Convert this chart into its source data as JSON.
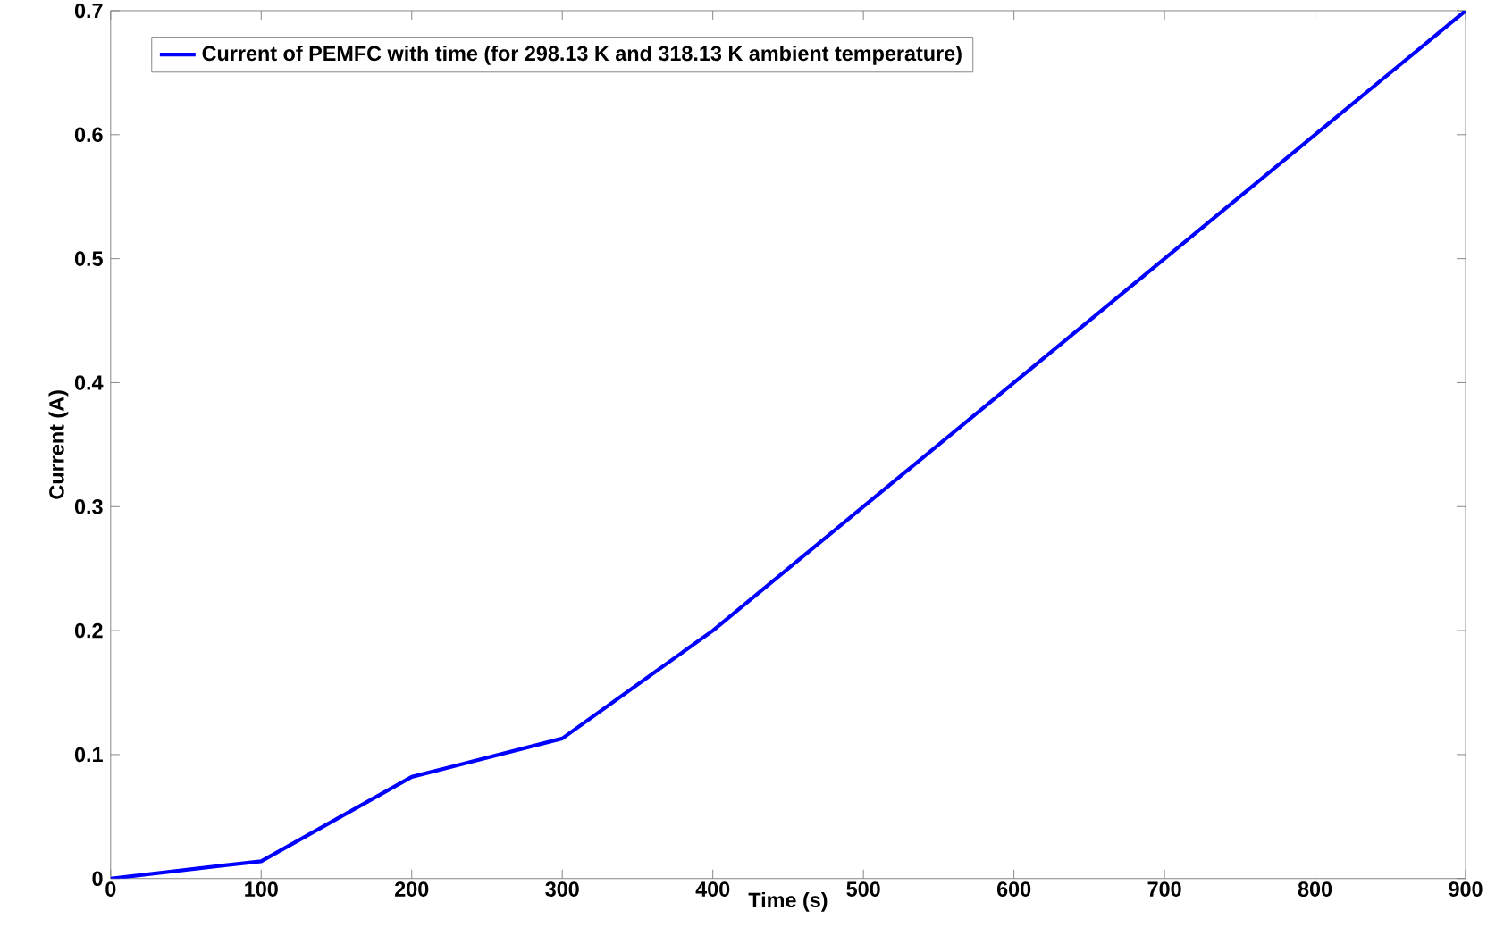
{
  "chart_data": {
    "type": "line",
    "xlabel": "Time (s)",
    "ylabel": "Current (A)",
    "x": [
      0,
      100,
      200,
      300,
      400,
      900
    ],
    "series": [
      {
        "name": "Current of PEMFC with time (for 298.13 K and 318.13 K ambient temperature)",
        "color": "#0000ff",
        "values": [
          0,
          0.014,
          0.082,
          0.113,
          0.2,
          0.7
        ]
      }
    ],
    "xlim": [
      0,
      900
    ],
    "ylim": [
      0,
      0.7
    ],
    "xticks": [
      0,
      100,
      200,
      300,
      400,
      500,
      600,
      700,
      800,
      900
    ],
    "yticks": [
      0,
      0.1,
      0.2,
      0.3,
      0.4,
      0.5,
      0.6,
      0.7
    ],
    "legend": "top left",
    "grid": false,
    "marker": "none",
    "line_style": "solid"
  }
}
